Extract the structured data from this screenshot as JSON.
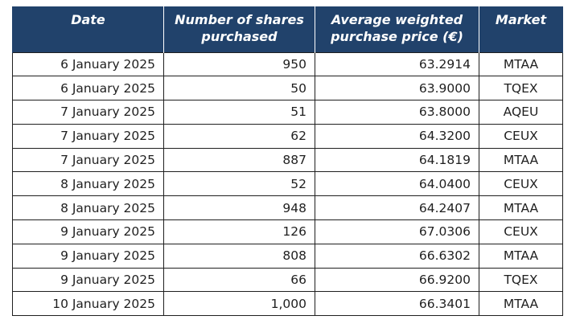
{
  "table": {
    "headers": {
      "date": "Date",
      "shares": "Number of shares purchased",
      "price": "Average weighted purchase price (€)",
      "market": "Market"
    },
    "header_color": "#21426b",
    "rows": [
      {
        "date": "6 January 2025",
        "shares": "950",
        "price": "63.2914",
        "market": "MTAA"
      },
      {
        "date": "6 January 2025",
        "shares": "50",
        "price": "63.9000",
        "market": "TQEX"
      },
      {
        "date": "7 January 2025",
        "shares": "51",
        "price": "63.8000",
        "market": "AQEU"
      },
      {
        "date": "7 January 2025",
        "shares": "62",
        "price": "64.3200",
        "market": "CEUX"
      },
      {
        "date": "7 January 2025",
        "shares": "887",
        "price": "64.1819",
        "market": "MTAA"
      },
      {
        "date": "8 January 2025",
        "shares": "52",
        "price": "64.0400",
        "market": "CEUX"
      },
      {
        "date": "8 January 2025",
        "shares": "948",
        "price": "64.2407",
        "market": "MTAA"
      },
      {
        "date": "9 January 2025",
        "shares": "126",
        "price": "67.0306",
        "market": "CEUX"
      },
      {
        "date": "9 January 2025",
        "shares": "808",
        "price": "66.6302",
        "market": "MTAA"
      },
      {
        "date": "9 January 2025",
        "shares": "66",
        "price": "66.9200",
        "market": "TQEX"
      },
      {
        "date": "10 January 2025",
        "shares": "1,000",
        "price": "66.3401",
        "market": "MTAA"
      }
    ]
  }
}
